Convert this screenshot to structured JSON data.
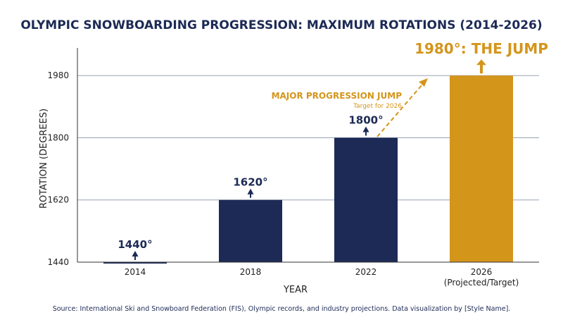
{
  "chart_data": {
    "type": "bar",
    "title": "OLYMPIC SNOWBOARDING PROGRESSION: MAXIMUM ROTATIONS (2014-2026)",
    "xlabel": "YEAR",
    "ylabel": "ROTATION (DEGREES)",
    "categories": [
      "2014",
      "2018",
      "2022",
      "2026"
    ],
    "category_sublabels": [
      "",
      "",
      "",
      "(Projected/Target)"
    ],
    "values": [
      1440,
      1620,
      1800,
      1980
    ],
    "value_labels": [
      "1440°",
      "1620°",
      "1800°",
      "1980°: THE JUMP"
    ],
    "highlight_index": 3,
    "yticks": [
      1440,
      1620,
      1800,
      1980
    ],
    "ylim": [
      1440,
      2060
    ],
    "grid": true,
    "annotation": {
      "text": "MAJOR PROGRESSION JUMP",
      "subtext": "Target for 2026"
    },
    "colors": {
      "bar": "#1c2a55",
      "highlight": "#d4951b",
      "grid": "#9aa3b5"
    },
    "source": "Source: International Ski and Snowboard Federation (FIS), Olympic records, and industry projections. Data visualization by [Style Name]."
  }
}
